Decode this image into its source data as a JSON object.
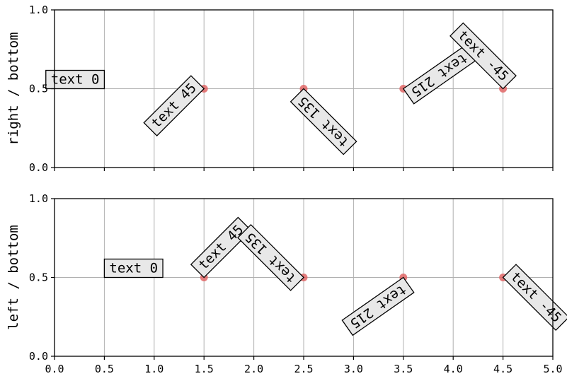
{
  "chart_data": [
    {
      "type": "scatter",
      "ylabel": "right / bottom",
      "xlim": [
        0,
        5
      ],
      "ylim": [
        0,
        1
      ],
      "grid": true,
      "xticks": [
        "0.0",
        "0.5",
        "1.0",
        "1.5",
        "2.0",
        "2.5",
        "3.0",
        "3.5",
        "4.0",
        "4.5",
        "5.0"
      ],
      "yticks": [
        "0.0",
        "0.5",
        "1.0"
      ],
      "show_xtick_labels": false,
      "points": [
        {
          "x": 1.5,
          "y": 0.5
        },
        {
          "x": 2.5,
          "y": 0.5
        },
        {
          "x": 3.5,
          "y": 0.5
        },
        {
          "x": 4.5,
          "y": 0.5
        }
      ],
      "annotations": [
        {
          "text": "text 0",
          "x": 0.5,
          "y": 0.5,
          "rotation": 0
        },
        {
          "text": "text 45",
          "x": 1.5,
          "y": 0.5,
          "rotation": 45
        },
        {
          "text": "text 135",
          "x": 2.5,
          "y": 0.5,
          "rotation": 135
        },
        {
          "text": "text 215",
          "x": 3.5,
          "y": 0.5,
          "rotation": 215
        },
        {
          "text": "text -45",
          "x": 4.5,
          "y": 0.5,
          "rotation": -45
        }
      ]
    },
    {
      "type": "scatter",
      "ylabel": "left / bottom",
      "xlim": [
        0,
        5
      ],
      "ylim": [
        0,
        1
      ],
      "grid": true,
      "xticks": [
        "0.0",
        "0.5",
        "1.0",
        "1.5",
        "2.0",
        "2.5",
        "3.0",
        "3.5",
        "4.0",
        "4.5",
        "5.0"
      ],
      "yticks": [
        "0.0",
        "0.5",
        "1.0"
      ],
      "show_xtick_labels": true,
      "points": [
        {
          "x": 1.5,
          "y": 0.5
        },
        {
          "x": 2.5,
          "y": 0.5
        },
        {
          "x": 3.5,
          "y": 0.5
        },
        {
          "x": 4.5,
          "y": 0.5
        }
      ],
      "annotations": [
        {
          "text": "text 0",
          "x": 0.5,
          "y": 0.5,
          "rotation": 0
        },
        {
          "text": "text 45",
          "x": 1.5,
          "y": 0.5,
          "rotation": 45
        },
        {
          "text": "text 135",
          "x": 2.5,
          "y": 0.5,
          "rotation": 135
        },
        {
          "text": "text 215",
          "x": 3.5,
          "y": 0.5,
          "rotation": 215
        },
        {
          "text": "text -45",
          "x": 4.5,
          "y": 0.5,
          "rotation": -45
        }
      ]
    }
  ],
  "colors": {
    "grid": "#b0b0b0",
    "marker": "#e06666",
    "box_fill": "#e8e8e8",
    "axes": "#000000"
  }
}
